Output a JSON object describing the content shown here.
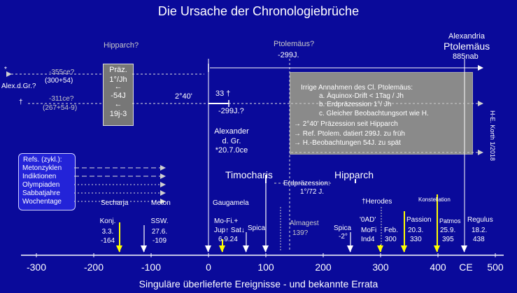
{
  "title": "Die Ursache der Chronologiebrüche",
  "footer": "Singuläre überlieferte Ereignisse - und bekannte Errata",
  "signature": "H-E. Korth 1/2018",
  "axis": {
    "ticks": [
      "-300",
      "-200",
      "-100",
      "0",
      "100",
      "200",
      "300",
      "400",
      "CE",
      "500"
    ]
  },
  "top_labels": {
    "hipparch_q": "Hipparch?",
    "ptolemaeus_q": "Ptolemäus?",
    "minus299": "-299J.",
    "alexandria": "Alexandria",
    "ptolemaeus": "Ptolemäus",
    "nab885": "885nab"
  },
  "left_labels": {
    "star": "*",
    "alex_dgr": "Alex.d.Gr.?",
    "dagger": "†",
    "ce355": "-355ce?",
    "sum300": "(300+54)",
    "ce311": "-311ce?",
    "sum267": "(267+54-9)"
  },
  "prae_box": {
    "l1": "Präz.",
    "l2": "1°/Jh",
    "l3": "←",
    "l4": "-54J",
    "l5": "←",
    "l6": "19j-3"
  },
  "mid_labels": {
    "deg240": "2°40'",
    "d33": "33 †",
    "minus299q": "-299J.?",
    "alexander1": "Alexander",
    "alexander2": "d. Gr.",
    "alexander3": "*20.7.0ce"
  },
  "note_box": {
    "heading": "Irrige Annahmen des Cl. Ptolemäus:",
    "a": "a. Äquinox-Drift  < 1Tag / Jh",
    "b": "b. Erdpräzession 1°/ Jh",
    "c": "c. Gleicher Beobachtungsort wie H.",
    "r1": "→ 2°40' Präzession seit Hipparch",
    "r2": "→ Ref. Ptolem. datiert 299J. zu früh",
    "r3": "→ H.-Beobachtungen 54J. zu spät"
  },
  "refs": {
    "heading": "Refs. (zykl.):",
    "items": [
      "Metonzyklen",
      "Indiktionen",
      "Olympiaden",
      "Sabbatjahre",
      "Wochentage"
    ]
  },
  "events_upper": {
    "timocharis": "Timocharis",
    "hipparch": "Hipparch",
    "erdpraez": "Erdpräzession:",
    "deg172": "1°/72 J.",
    "secharja": "Secharja",
    "meton": "Meton",
    "gaugamela": "Gaugamela",
    "herodes": "†Herodes",
    "konstellation": "Konstellation"
  },
  "events_lower": {
    "konj1": "Konj.",
    "konj2": "3.3.",
    "konj3": "-164",
    "ssw1": "SSW.",
    "ssw2": "27.6.",
    "ssw3": "-109",
    "mofi1": "Mo-Fi.+",
    "mofi2": "Jup↑ Sat↓",
    "mofi3": "6.9.24",
    "spica": "Spica",
    "almagest1": "Almagest",
    "almagest2": "139?",
    "spica2a": "Spica",
    "spica2b": "-2°",
    "oad1": "'0AD'",
    "oad2": "MoFi",
    "oad3": "Ind4",
    "feb1": "Feb.",
    "feb2": "300",
    "passion1": "Passion",
    "passion2": "20.3.",
    "passion3": "330",
    "patmos1": "Patmos",
    "patmos2": "25.9.",
    "patmos3": "395",
    "regulus1": "Regulus",
    "regulus2": "18.2.",
    "regulus3": "438"
  }
}
